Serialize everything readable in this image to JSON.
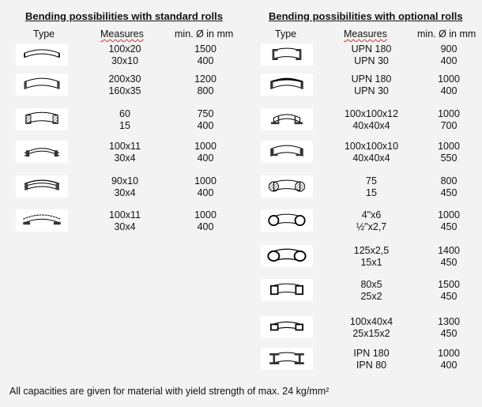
{
  "left": {
    "title": "Bending possibilities with standard rolls",
    "headers": {
      "type": "Type",
      "measures": "Measures",
      "min": "min. Ø in mm"
    },
    "rows": [
      {
        "icon": "flat-bar-easyway-icon",
        "m1": "100x20",
        "m2": "30x10",
        "d1": "1500",
        "d2": "400"
      },
      {
        "icon": "flat-bar-hardway-icon",
        "m1": "200x30",
        "m2": "160x35",
        "d1": "1200",
        "d2": "800"
      },
      {
        "icon": "square-bar-icon",
        "m1": "60",
        "m2": "15",
        "d1": "750",
        "d2": "400"
      },
      {
        "icon": "t-bar-icon",
        "m1": "100x11",
        "m2": "30x4",
        "d1": "1000",
        "d2": "400"
      },
      {
        "icon": "angle-bar-icon",
        "m1": "90x10",
        "m2": "30x4",
        "d1": "1000",
        "d2": "400"
      },
      {
        "icon": "t-bar-inverted-icon",
        "m1": "100x11",
        "m2": "30x4",
        "d1": "1000",
        "d2": "400"
      }
    ]
  },
  "right": {
    "title": "Bending possibilities with optional rolls",
    "headers": {
      "type": "Type",
      "measures": "Measures",
      "min": "min. Ø in mm"
    },
    "rows": [
      {
        "icon": "upn-channel-icon",
        "m1": "UPN 180",
        "m2": "UPN 30",
        "d1": "900",
        "d2": "400"
      },
      {
        "icon": "upn-channel-flange-icon",
        "m1": "UPN 180",
        "m2": "UPN 30",
        "d1": "1000",
        "d2": "400"
      },
      {
        "icon": "angle-in-icon",
        "m1": "100x100x12",
        "m2": "40x40x4",
        "d1": "1000",
        "d2": "700"
      },
      {
        "icon": "angle-out-icon",
        "m1": "100x100x10",
        "m2": "40x40x4",
        "d1": "1000",
        "d2": "550"
      },
      {
        "icon": "round-bar-icon",
        "m1": "75",
        "m2": "15",
        "d1": "800",
        "d2": "450"
      },
      {
        "icon": "round-tube-icon",
        "m1": "4\"x6",
        "m2": "½\"x2,7",
        "d1": "1000",
        "d2": "450"
      },
      {
        "icon": "oval-tube-icon",
        "m1": "125x2,5",
        "m2": "15x1",
        "d1": "1400",
        "d2": "450"
      },
      {
        "icon": "square-tube-icon",
        "m1": "80x5",
        "m2": "25x2",
        "d1": "1500",
        "d2": "450"
      },
      {
        "icon": "rect-tube-icon",
        "m1": "100x40x4",
        "m2": "25x15x2",
        "d1": "1300",
        "d2": "450"
      },
      {
        "icon": "ipn-beam-icon",
        "m1": "IPN 180",
        "m2": "IPN 80",
        "d1": "1000",
        "d2": "400"
      }
    ]
  },
  "footer": "All capacities are given for material with yield strength of max. 24 kg/mm²"
}
